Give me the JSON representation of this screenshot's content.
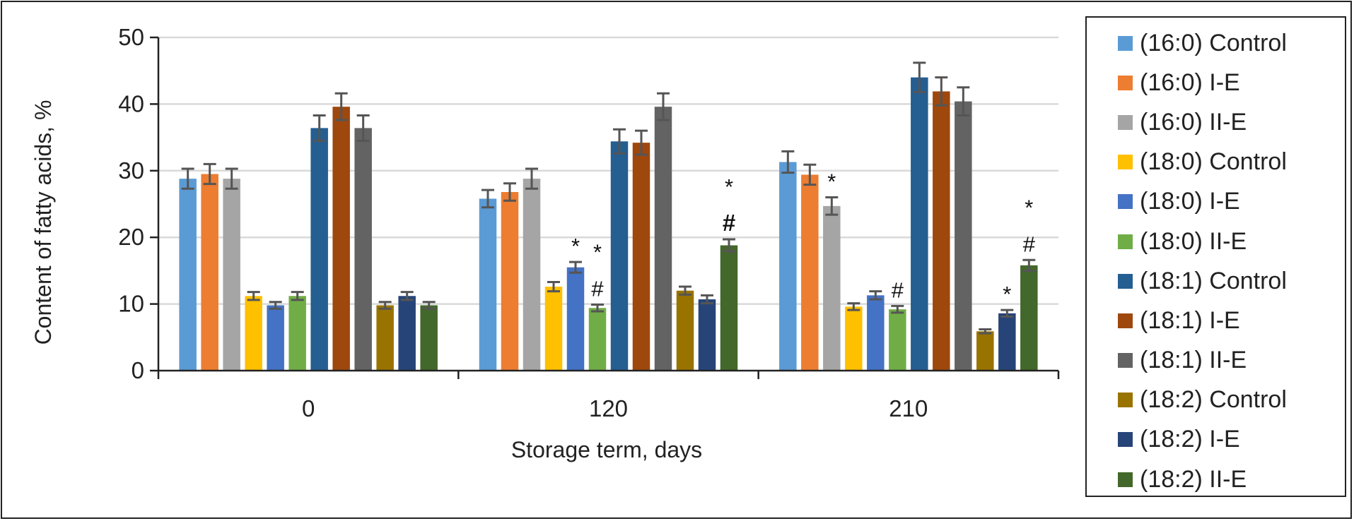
{
  "chart_data": {
    "type": "bar",
    "title": "",
    "xlabel": "Storage term, days",
    "ylabel": "Content of fatty acids, %",
    "ylim": [
      0,
      50
    ],
    "yticks": [
      "0",
      "10",
      "20",
      "30",
      "40",
      "50"
    ],
    "categories": [
      "0",
      "120",
      "210"
    ],
    "grid": "horizontal",
    "legend_position": "right",
    "series": [
      {
        "name": "(16:0) Control",
        "color": "#5B9BD5",
        "values": [
          28.8,
          25.8,
          31.3
        ],
        "errors": [
          1.5,
          1.3,
          1.6
        ]
      },
      {
        "name": "(16:0) I-E",
        "color": "#ED7D31",
        "values": [
          29.5,
          26.8,
          29.4
        ],
        "errors": [
          1.5,
          1.3,
          1.5
        ]
      },
      {
        "name": "(16:0) II-E",
        "color": "#A5A5A5",
        "values": [
          28.8,
          28.8,
          24.7
        ],
        "errors": [
          1.5,
          1.5,
          1.3
        ]
      },
      {
        "name": "(18:0) Control",
        "color": "#FFC000",
        "values": [
          11.2,
          12.6,
          9.6
        ],
        "errors": [
          0.6,
          0.7,
          0.5
        ]
      },
      {
        "name": "(18:0) I-E",
        "color": "#4472C4",
        "values": [
          9.8,
          15.5,
          11.3
        ],
        "errors": [
          0.5,
          0.8,
          0.6
        ]
      },
      {
        "name": "(18:0) II-E",
        "color": "#70AD47",
        "values": [
          11.2,
          9.4,
          9.2
        ],
        "errors": [
          0.6,
          0.5,
          0.5
        ]
      },
      {
        "name": "(18:1) Control",
        "color": "#255E91",
        "values": [
          36.4,
          34.4,
          44.0
        ],
        "errors": [
          1.9,
          1.8,
          2.2
        ]
      },
      {
        "name": "(18:1) I-E",
        "color": "#9E480E",
        "values": [
          39.6,
          34.2,
          41.9
        ],
        "errors": [
          2.0,
          1.8,
          2.1
        ]
      },
      {
        "name": "(18:1) II-E",
        "color": "#636363",
        "values": [
          36.4,
          39.6,
          40.4
        ],
        "errors": [
          1.9,
          2.0,
          2.1
        ]
      },
      {
        "name": "(18:2) Control",
        "color": "#997300",
        "values": [
          9.8,
          12.0,
          5.9
        ],
        "errors": [
          0.5,
          0.6,
          0.3
        ]
      },
      {
        "name": "(18:2) I-E",
        "color": "#264478",
        "values": [
          11.2,
          10.7,
          8.6
        ],
        "errors": [
          0.6,
          0.6,
          0.5
        ]
      },
      {
        "name": "(18:2) II-E",
        "color": "#43682B",
        "values": [
          9.8,
          18.8,
          15.8
        ],
        "errors": [
          0.5,
          0.9,
          0.8
        ]
      }
    ],
    "annotations": [
      {
        "category": "120",
        "series": "(18:0) I-E",
        "text": "*",
        "bold": false
      },
      {
        "category": "120",
        "series": "(18:0) II-E",
        "text": "*",
        "bold": false
      },
      {
        "category": "120",
        "series": "(18:0) II-E",
        "text": "#",
        "bold": false
      },
      {
        "category": "120",
        "series": "(18:2) II-E",
        "text": "*",
        "bold": false
      },
      {
        "category": "120",
        "series": "(18:2) II-E",
        "text": "#",
        "bold": true
      },
      {
        "category": "210",
        "series": "(16:0) II-E",
        "text": "*",
        "bold": false
      },
      {
        "category": "210",
        "series": "(18:0) II-E",
        "text": "#",
        "bold": false
      },
      {
        "category": "210",
        "series": "(18:2) I-E",
        "text": "*",
        "bold": false
      },
      {
        "category": "210",
        "series": "(18:2) II-E",
        "text": "*",
        "bold": false
      },
      {
        "category": "210",
        "series": "(18:2) II-E",
        "text": "#",
        "bold": false
      }
    ]
  }
}
